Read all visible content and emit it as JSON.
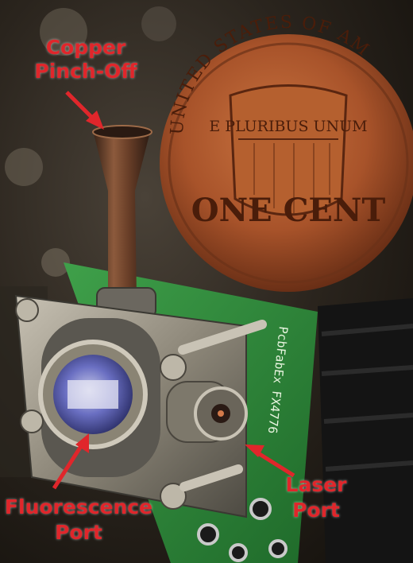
{
  "callouts": {
    "copper_pinch_off": {
      "line1": "Copper",
      "line2": "Pinch-Off"
    },
    "fluorescence_port": {
      "line1": "Fluorescence",
      "line2": "Port"
    },
    "laser_port": {
      "line1": "Laser",
      "line2": "Port"
    }
  },
  "coin": {
    "top_arc": "UNITED STATES OF AM",
    "banner": "E PLURIBUS UNUM",
    "denomination": "ONE CENT"
  },
  "pcb": {
    "silkscreen": "PcbFabEx FX4776"
  },
  "colors": {
    "callout_text": "#e0262b",
    "coin_copper": "#a8532a",
    "pcb_green": "#2f8a3a",
    "metal": "#9a9486"
  }
}
